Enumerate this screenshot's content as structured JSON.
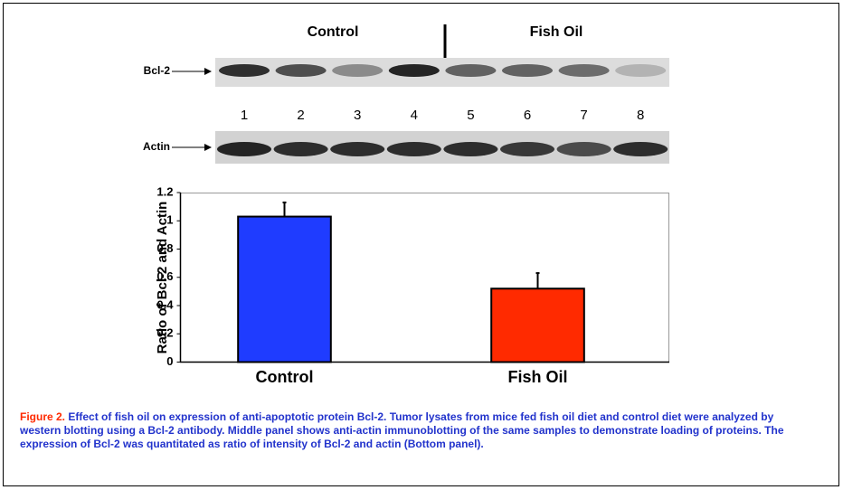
{
  "blot": {
    "groups": [
      "Control",
      "Fish Oil"
    ],
    "rows": [
      "Bcl-2",
      "Actin"
    ],
    "lanes": [
      "1",
      "2",
      "3",
      "4",
      "5",
      "6",
      "7",
      "8"
    ]
  },
  "chart_data": {
    "type": "bar",
    "ylabel": "Ratio of Bcl-2 and Actin",
    "categories": [
      "Control",
      "Fish Oil"
    ],
    "values": [
      1.03,
      0.52
    ],
    "errors": [
      0.1,
      0.11
    ],
    "colors": [
      "#1f3cff",
      "#ff2a00"
    ],
    "ylim": [
      0,
      1.2
    ],
    "yticks": [
      0,
      0.2,
      0.4,
      0.6,
      0.8,
      1,
      1.2
    ],
    "grid": false
  },
  "caption": {
    "label": "Figure 2.",
    "text": "Effect of fish oil on expression of anti-apoptotic protein Bcl-2. Tumor lysates from mice fed fish oil diet and control diet were analyzed by western blotting using a Bcl-2 antibody. Middle panel shows anti-actin immunoblotting of the same samples to demonstrate loading of proteins. The expression of Bcl-2 was quantitated as ratio of intensity of Bcl-2 and actin (Bottom panel)."
  }
}
